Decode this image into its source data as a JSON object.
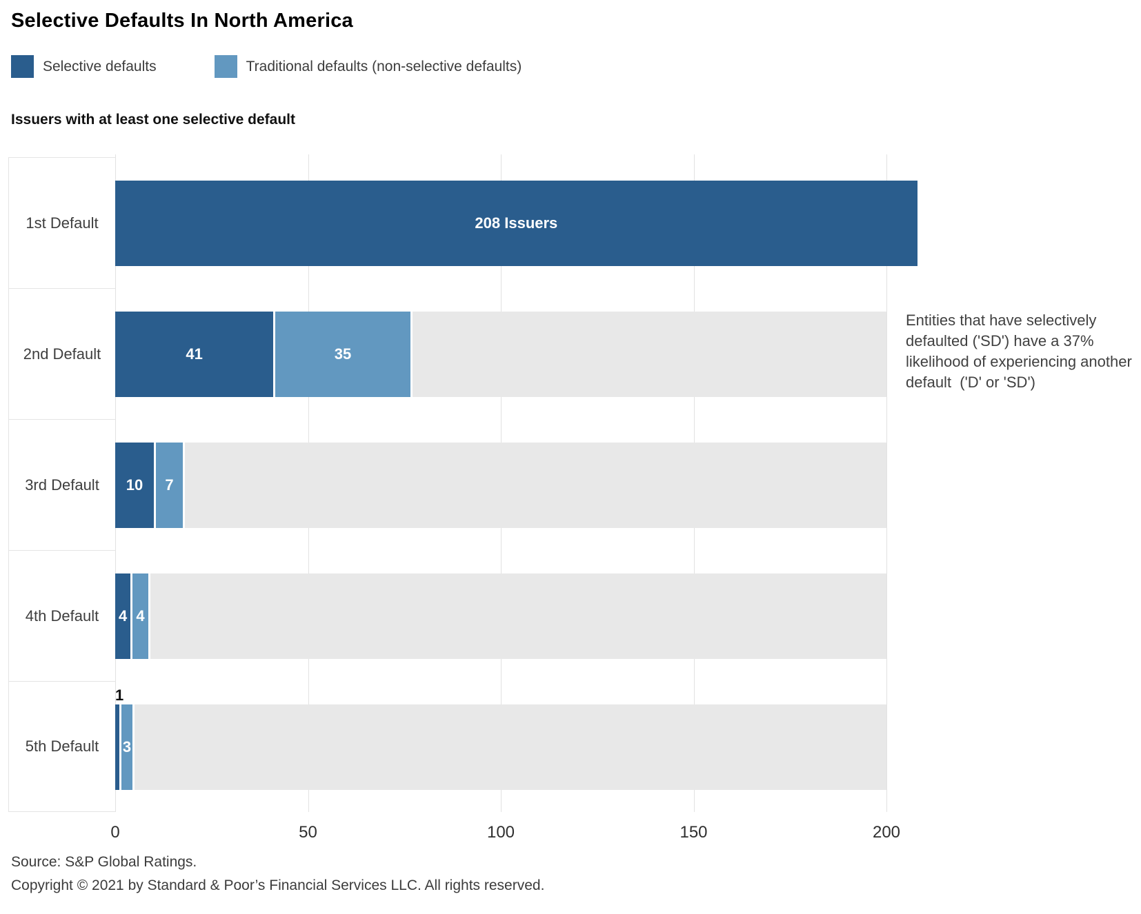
{
  "title": "Selective Defaults In North America",
  "legend": {
    "items": [
      {
        "label": "Selective defaults",
        "color": "#2a5d8d"
      },
      {
        "label": "Traditional defaults (non-selective defaults)",
        "color": "#6298c0"
      }
    ]
  },
  "chart_data": {
    "type": "bar",
    "orientation": "horizontal",
    "stacked": true,
    "title": "Issuers with at least one selective default",
    "categories": [
      "1st Default",
      "2nd Default",
      "3rd Default",
      "4th Default",
      "5th Default"
    ],
    "series": [
      {
        "name": "Selective defaults",
        "color": "#2a5d8d",
        "values": [
          208,
          41,
          10,
          4,
          1
        ],
        "labels": [
          "208 Issuers",
          "41",
          "10",
          "4",
          "1"
        ]
      },
      {
        "name": "Traditional defaults (non-selective defaults)",
        "color": "#6298c0",
        "values": [
          null,
          35,
          7,
          4,
          3
        ],
        "labels": [
          null,
          "35",
          "7",
          "4",
          "3"
        ]
      }
    ],
    "xlim": [
      0,
      200
    ],
    "x_ticks": [
      0,
      50,
      100,
      150,
      200
    ],
    "track_color": "#e8e8e8",
    "grid": "vertical",
    "legend_position": "top",
    "annotation": "Entities that have selectively defaulted ('SD') have a 37% likelihood of experiencing another default  ('D' or 'SD')"
  },
  "footer": {
    "source": "Source: S&P Global Ratings.",
    "copyright": "Copyright © 2021 by Standard & Poor’s Financial Services LLC. All rights reserved."
  }
}
